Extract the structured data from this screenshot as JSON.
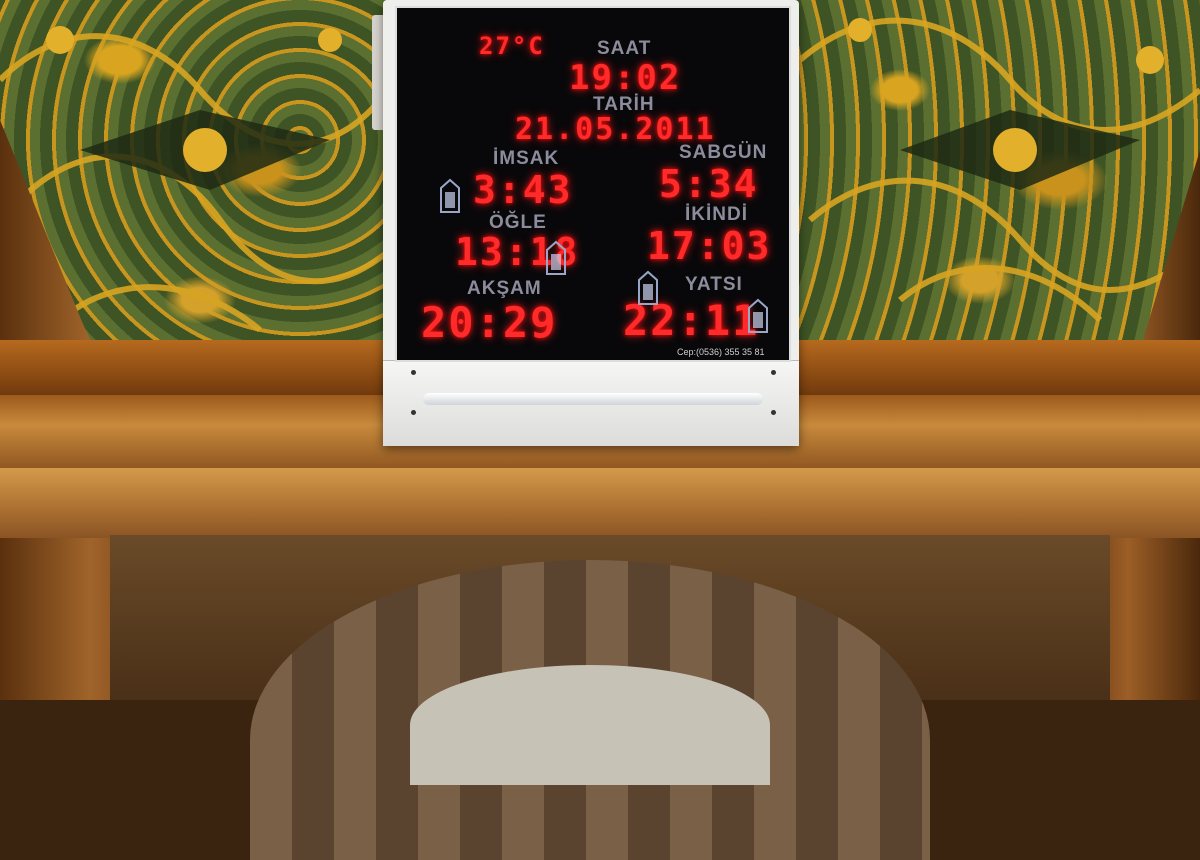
{
  "display": {
    "temperature": "27°C",
    "time_label": "SAAT",
    "time": "19:02",
    "date_label": "TARİH",
    "date": "21.05.2011",
    "prayers": {
      "imsak": {
        "label": "İMSAK",
        "time": "3:43"
      },
      "sabah": {
        "label": "SABGÜN",
        "time": "5:34"
      },
      "ogle": {
        "label": "ÖĞLE",
        "time": "13:18"
      },
      "ikindi": {
        "label": "İKİNDİ",
        "time": "17:03"
      },
      "aksam": {
        "label": "AKŞAM",
        "time": "20:29"
      },
      "yatsi": {
        "label": "YATSI",
        "time": "22:11"
      }
    },
    "phone": "Cep:(0536) 355 35 81"
  },
  "colors": {
    "led": "#ff2a2a",
    "label": "#8c8c9c",
    "screen": "#08080a",
    "ceiling_gold": "#d9a520",
    "ceiling_green": "#4f6428",
    "wood": "#b66a1e"
  }
}
